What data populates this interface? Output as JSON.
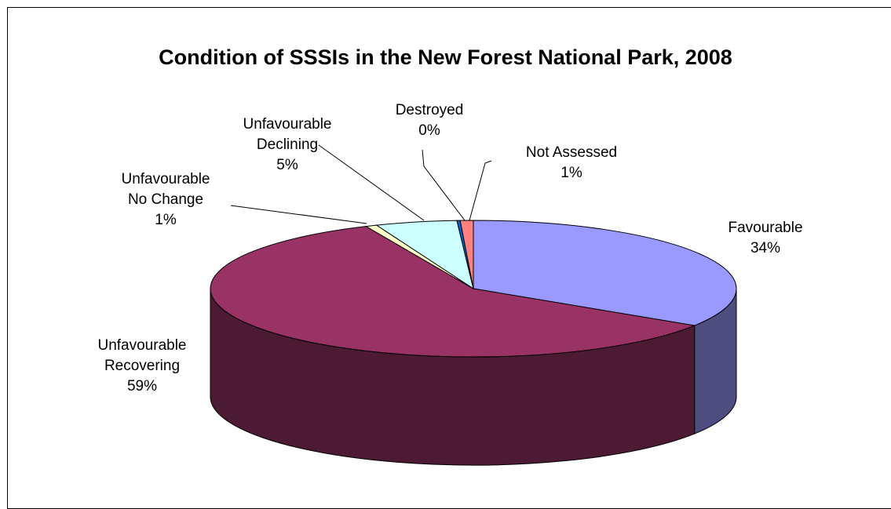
{
  "chart_data": {
    "type": "pie",
    "title": "Condition of SSSIs in the New Forest National Park, 2008",
    "three_d": true,
    "slices": [
      {
        "name": "Favourable",
        "pct_label": "34%",
        "value": 34.1,
        "color": "#9999ff",
        "side_color": "#4d4d80"
      },
      {
        "name": "Unfavourable Recovering",
        "pct_label": "59%",
        "value": 59.2,
        "color": "#993366",
        "side_color": "#4c1a33"
      },
      {
        "name": "Unfavourable No Change",
        "pct_label": "1%",
        "value": 0.7,
        "color": "#ffffcc",
        "side_color": "#808066"
      },
      {
        "name": "Unfavourable Declining",
        "pct_label": "5%",
        "value": 5.0,
        "color": "#ccffff",
        "side_color": "#668080"
      },
      {
        "name": "Destroyed",
        "pct_label": "0%",
        "value": 0.2,
        "color": "#0066cc",
        "side_color": "#003366"
      },
      {
        "name": "Not Assessed",
        "pct_label": "1%",
        "value": 0.8,
        "color": "#ff8080",
        "side_color": "#804040"
      }
    ],
    "labels": [
      {
        "lines": [
          "Favourable",
          "34%"
        ]
      },
      {
        "lines": [
          "Unfavourable",
          "Recovering",
          "59%"
        ]
      },
      {
        "lines": [
          "Unfavourable",
          "No Change",
          "1%"
        ]
      },
      {
        "lines": [
          "Unfavourable",
          "Declining",
          "5%"
        ]
      },
      {
        "lines": [
          "Destroyed",
          "0%"
        ]
      },
      {
        "lines": [
          "Not Assessed",
          "1%"
        ]
      }
    ]
  }
}
